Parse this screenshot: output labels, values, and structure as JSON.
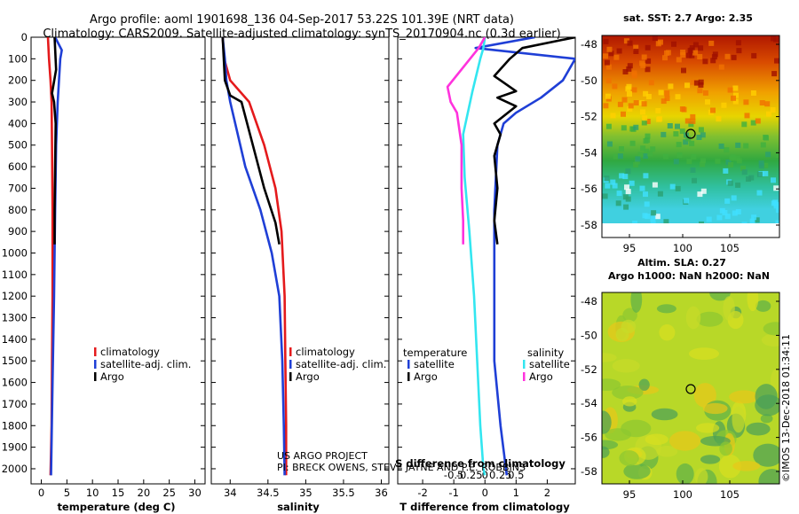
{
  "title_line1": "Argo profile: aoml 1901698_136 04-Sep-2017 53.22S 101.39E (NRT data)",
  "title_line2": "Climatology: CARS2009. Satellite-adjusted climatology: synTS_20170904.nc (0.3d earlier)",
  "colors": {
    "climatology": "#e41a1c",
    "satellite": "#1f3fd6",
    "argo": "#000000",
    "argo_salinity": "#ff33dd",
    "satellite_salinity": "#33e6f0"
  },
  "chart_data": [
    {
      "type": "line",
      "id": "temperature",
      "xlabel": "temperature (deg C)",
      "ylabel": "",
      "xlim": [
        -2,
        32
      ],
      "ylim": [
        2070,
        0
      ],
      "xticks": [
        "0",
        "5",
        "10",
        "15",
        "20",
        "25",
        "30"
      ],
      "yticks": [
        "0",
        "100",
        "200",
        "300",
        "400",
        "500",
        "600",
        "700",
        "800",
        "900",
        "1000",
        "1100",
        "1200",
        "1300",
        "1400",
        "1500",
        "1600",
        "1700",
        "1800",
        "1900",
        "2000"
      ],
      "legend": [
        "climatology",
        "satellite-adj. clim.",
        "Argo"
      ],
      "series": [
        {
          "name": "climatology",
          "color": "#e41a1c",
          "x": [
            1.3,
            1.5,
            1.8,
            2.0,
            2.1,
            2.2,
            2.2,
            2.1,
            2.0,
            1.8
          ],
          "y": [
            0,
            100,
            200,
            300,
            500,
            800,
            1200,
            1500,
            1800,
            2030
          ]
        },
        {
          "name": "satellite-adj. clim.",
          "color": "#1f3fd6",
          "x": [
            2.7,
            4.0,
            3.7,
            3.2,
            2.9,
            2.7,
            2.5,
            2.2,
            1.9
          ],
          "y": [
            0,
            60,
            100,
            300,
            500,
            800,
            1200,
            1600,
            2030
          ]
        },
        {
          "name": "Argo",
          "color": "#000000",
          "x": [
            2.6,
            2.9,
            2.1,
            2.5,
            2.8,
            2.7,
            2.6,
            2.6
          ],
          "y": [
            0,
            150,
            260,
            300,
            400,
            600,
            800,
            960
          ]
        }
      ]
    },
    {
      "type": "line",
      "id": "salinity",
      "xlabel": "salinity",
      "xlim": [
        33.75,
        36.1
      ],
      "ylim": [
        2070,
        0
      ],
      "xticks": [
        "34",
        "34.5",
        "35",
        "35.5",
        "36"
      ],
      "legend": [
        "climatology",
        "satellite-adj. clim.",
        "Argo"
      ],
      "series": [
        {
          "name": "climatology",
          "color": "#e41a1c",
          "x": [
            33.9,
            33.92,
            34.0,
            34.25,
            34.45,
            34.6,
            34.68,
            34.72,
            34.73,
            34.74,
            34.74
          ],
          "y": [
            0,
            100,
            200,
            300,
            500,
            700,
            900,
            1200,
            1500,
            1800,
            2030
          ]
        },
        {
          "name": "satellite-adj. clim.",
          "color": "#1f3fd6",
          "x": [
            33.9,
            33.93,
            33.95,
            34.0,
            34.2,
            34.4,
            34.55,
            34.65,
            34.69,
            34.71,
            34.72
          ],
          "y": [
            0,
            100,
            200,
            300,
            600,
            800,
            1000,
            1200,
            1500,
            1800,
            2030
          ]
        },
        {
          "name": "Argo",
          "color": "#000000",
          "x": [
            33.9,
            33.93,
            34.0,
            34.15,
            34.3,
            34.45,
            34.6,
            34.65
          ],
          "y": [
            0,
            200,
            270,
            300,
            500,
            700,
            860,
            960
          ]
        }
      ]
    },
    {
      "type": "line",
      "id": "difference",
      "xlabel": "T difference from climatology",
      "xlabel_top": "S difference from climatology",
      "xlim": [
        -2.8,
        2.9
      ],
      "ylim": [
        2070,
        0
      ],
      "xticks": [
        "-2",
        "-1",
        "0",
        "1",
        "2"
      ],
      "xticks_top": [
        "-0.5",
        "-0.25",
        "0",
        "0.25",
        "0.5"
      ],
      "legend_temperature_title": "temperature",
      "legend_salinity_title": "salinity",
      "legend_temperature": [
        "satellite",
        "Argo"
      ],
      "legend_salinity": [
        "satellite",
        "Argo"
      ],
      "series": [
        {
          "name": "T satellite",
          "color": "#1f3fd6",
          "x": [
            1.6,
            -0.3,
            2.9,
            2.5,
            1.8,
            1.0,
            0.6,
            0.4,
            0.3,
            0.3,
            0.3,
            0.5,
            0.7
          ],
          "y": [
            0,
            50,
            100,
            200,
            280,
            350,
            400,
            500,
            800,
            1200,
            1500,
            1800,
            2030
          ]
        },
        {
          "name": "T Argo",
          "color": "#000000",
          "x": [
            2.9,
            1.2,
            0.8,
            0.3,
            1.0,
            0.4,
            1.0,
            0.3,
            0.5,
            0.3,
            0.4,
            0.3,
            0.4
          ],
          "y": [
            0,
            50,
            100,
            180,
            250,
            280,
            320,
            400,
            450,
            550,
            700,
            850,
            960
          ]
        },
        {
          "name": "S satellite",
          "color": "#33e6f0",
          "x": [
            0.0,
            -0.05,
            -0.15,
            -0.4,
            -0.7,
            -0.65,
            -0.5,
            -0.35,
            -0.25,
            -0.15,
            -0.05,
            0.0
          ],
          "y": [
            0,
            50,
            100,
            250,
            450,
            650,
            900,
            1200,
            1500,
            1800,
            2000,
            2030
          ]
        },
        {
          "name": "S Argo",
          "color": "#ff33dd",
          "x": [
            0.0,
            -0.2,
            -1.2,
            -1.1,
            -0.9,
            -0.75,
            -0.75,
            -0.7,
            -0.7
          ],
          "y": [
            0,
            50,
            230,
            300,
            350,
            500,
            700,
            850,
            960
          ]
        }
      ]
    }
  ],
  "credits": {
    "line1": "US ARGO PROJECT",
    "line2": "PI: BRECK OWENS, STEVE JAYNE AND P.E. ROBBINS"
  },
  "map_sst": {
    "title": "sat. SST: 2.7 Argo: 2.35",
    "xticks": [
      "95",
      "100",
      "105"
    ],
    "yticks": [
      "-48",
      "-50",
      "-52",
      "-54",
      "-56",
      "-58"
    ]
  },
  "map_sla": {
    "title_line1": "Altim. SLA: 0.27",
    "title_line2": "Argo h1000: NaN h2000: NaN",
    "xticks": [
      "95",
      "100",
      "105"
    ],
    "yticks": [
      "-48",
      "-50",
      "-52",
      "-54",
      "-56",
      "-58"
    ]
  },
  "stamp": "©IMOS 13-Dec-2018 01:34:11"
}
